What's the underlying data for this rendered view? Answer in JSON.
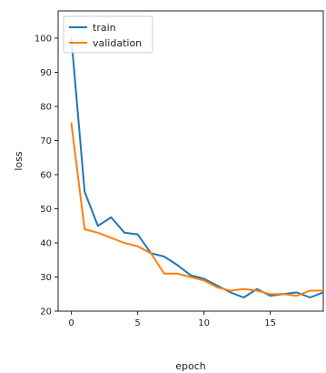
{
  "chart_data": {
    "type": "line",
    "title": "",
    "xlabel": "epoch",
    "ylabel": "loss",
    "xlim": [
      -1,
      19
    ],
    "ylim": [
      20,
      108
    ],
    "x_ticks": [
      0,
      5,
      10,
      15
    ],
    "y_ticks": [
      20,
      30,
      40,
      50,
      60,
      70,
      80,
      90,
      100
    ],
    "grid": false,
    "legend_position": "upper-left",
    "x": [
      0,
      1,
      2,
      3,
      4,
      5,
      6,
      7,
      8,
      9,
      10,
      11,
      12,
      13,
      14,
      15,
      16,
      17,
      18,
      19
    ],
    "series": [
      {
        "name": "train",
        "color": "#1f77b4",
        "values": [
          100,
          55,
          45,
          47.5,
          43,
          42.5,
          37,
          36,
          33.5,
          30.5,
          29.5,
          27.5,
          25.5,
          24,
          26.5,
          24.5,
          25,
          25.5,
          24,
          25.5
        ]
      },
      {
        "name": "validation",
        "color": "#ff7f0e",
        "values": [
          75,
          44,
          43,
          41.5,
          40,
          39,
          37,
          31,
          31,
          30,
          29,
          27,
          26,
          26.5,
          26,
          25,
          25,
          24.5,
          26,
          26
        ]
      }
    ]
  }
}
